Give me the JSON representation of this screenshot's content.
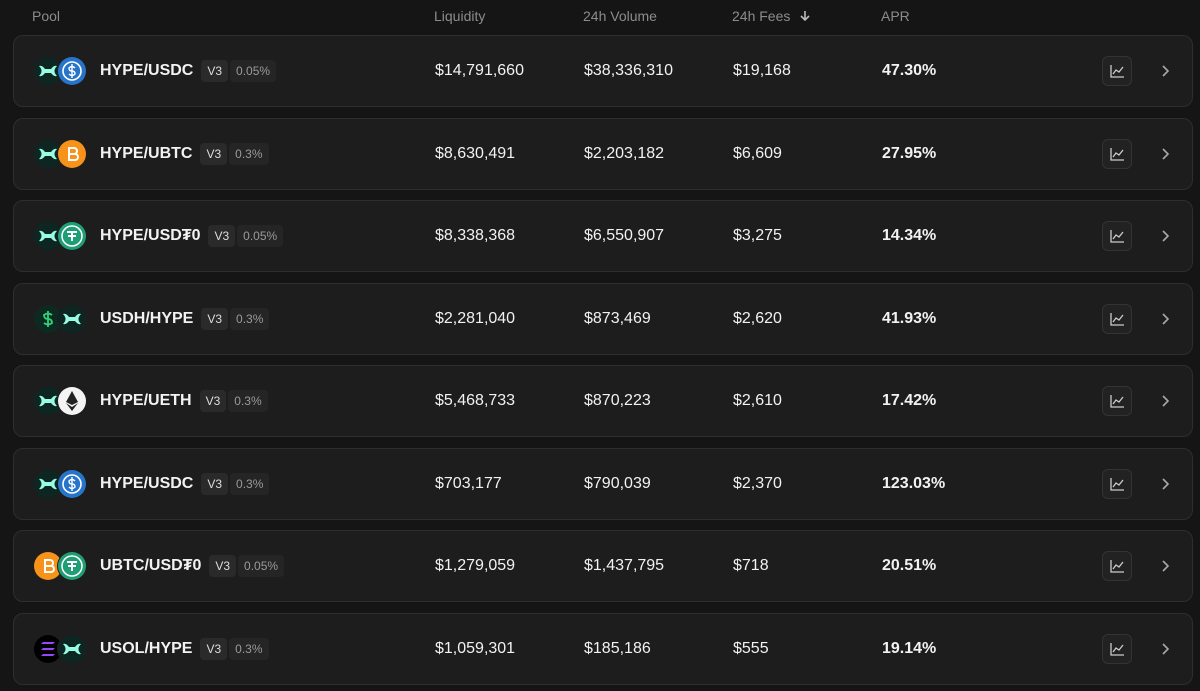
{
  "header": {
    "columns": [
      "Pool",
      "Liquidity",
      "24h Volume",
      "24h Fees",
      "APR"
    ]
  },
  "rows": [
    {
      "pool": "HYPE/USDC",
      "version": "V3",
      "fee": "0.05%",
      "liquidity": "$14,791,660",
      "volume": "$38,336,310",
      "fees": "$19,168",
      "apr": "47.30%"
    },
    {
      "pool": "HYPE/UBTC",
      "version": "V3",
      "fee": "0.3%",
      "liquidity": "$8,630,491",
      "volume": "$2,203,182",
      "fees": "$6,609",
      "apr": "27.95%"
    },
    {
      "pool": "HYPE/USD₮0",
      "version": "V3",
      "fee": "0.05%",
      "liquidity": "$8,338,368",
      "volume": "$6,550,907",
      "fees": "$3,275",
      "apr": "14.34%"
    },
    {
      "pool": "USDH/HYPE",
      "version": "V3",
      "fee": "0.3%",
      "liquidity": "$2,281,040",
      "volume": "$873,469",
      "fees": "$2,620",
      "apr": "41.93%"
    },
    {
      "pool": "HYPE/UETH",
      "version": "V3",
      "fee": "0.3%",
      "liquidity": "$5,468,733",
      "volume": "$870,223",
      "fees": "$2,610",
      "apr": "17.42%"
    },
    {
      "pool": "HYPE/USDC",
      "version": "V3",
      "fee": "0.3%",
      "liquidity": "$703,177",
      "volume": "$790,039",
      "fees": "$2,370",
      "apr": "123.03%"
    },
    {
      "pool": "UBTC/USD₮0",
      "version": "V3",
      "fee": "0.05%",
      "liquidity": "$1,279,059",
      "volume": "$1,437,795",
      "fees": "$718",
      "apr": "20.51%"
    },
    {
      "pool": "USOL/HYPE",
      "version": "V3",
      "fee": "0.3%",
      "liquidity": "$1,059,301",
      "volume": "$185,186",
      "fees": "$555",
      "apr": "19.14%"
    }
  ]
}
